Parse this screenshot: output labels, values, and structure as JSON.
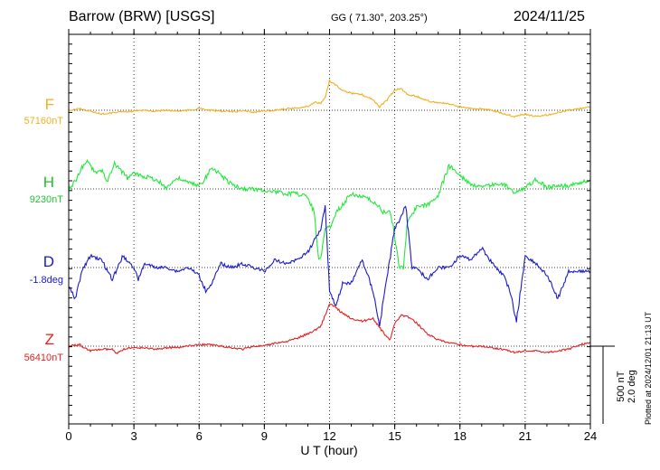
{
  "header": {
    "station": "Barrow (BRW)  [USGS]",
    "coords": "GG ( 71.30°, 203.25°)",
    "date": "2024/11/25"
  },
  "channels": [
    {
      "name": "F",
      "baseline": "57160nT",
      "color": "#f0b020"
    },
    {
      "name": "H",
      "baseline": "9230nT",
      "color": "#22e83a"
    },
    {
      "name": "D",
      "baseline": "-1.8deg",
      "color": "#1a1acc"
    },
    {
      "name": "Z",
      "baseline": "56410nT",
      "color": "#e62020"
    }
  ],
  "scale": {
    "line1": "500 nT",
    "line2": "2.0 deg"
  },
  "plotted": "Plotted at 2024/12/01 21:13 UT",
  "chart_data": {
    "type": "line",
    "title": "Barrow (BRW)  [USGS]",
    "xlabel": "U T (hour)",
    "ylabel": "",
    "xlim": [
      0,
      24
    ],
    "xticks": [
      0,
      3,
      6,
      9,
      12,
      15,
      18,
      21,
      24
    ],
    "units": {
      "F": "nT",
      "H": "nT",
      "D": "deg",
      "Z": "nT"
    },
    "scale_bar": {
      "nT": 500,
      "deg": 2.0
    },
    "grid": true,
    "series": [
      {
        "name": "F",
        "x": [
          0,
          0.5,
          1,
          1.5,
          2,
          2.5,
          3,
          3.5,
          4,
          4.5,
          5,
          5.5,
          6,
          6.5,
          7,
          7.5,
          8,
          8.5,
          9,
          9.5,
          10,
          10.5,
          11,
          11.3,
          11.6,
          11.8,
          12,
          12.3,
          12.6,
          13,
          13.5,
          14,
          14.3,
          14.6,
          15,
          15.3,
          15.6,
          16,
          16.5,
          17,
          17.5,
          18,
          18.5,
          19,
          19.5,
          20,
          20.5,
          21,
          21.5,
          22,
          22.5,
          23,
          23.5,
          24
        ],
        "y": [
          0,
          10,
          -5,
          -25,
          -15,
          -10,
          -5,
          0,
          -5,
          0,
          -5,
          0,
          10,
          0,
          -5,
          -10,
          -5,
          -10,
          -5,
          0,
          10,
          15,
          25,
          50,
          45,
          80,
          190,
          160,
          130,
          110,
          100,
          70,
          20,
          60,
          130,
          140,
          100,
          90,
          60,
          50,
          40,
          20,
          10,
          10,
          0,
          -20,
          -40,
          -25,
          -40,
          -30,
          -15,
          0,
          10,
          20
        ]
      },
      {
        "name": "H",
        "x": [
          0,
          0.3,
          0.6,
          0.9,
          1.2,
          1.5,
          1.8,
          2.1,
          2.4,
          2.7,
          3,
          3.5,
          4,
          4.5,
          5,
          5.5,
          6,
          6.3,
          6.6,
          7,
          7.5,
          8,
          8.5,
          9,
          9.5,
          10,
          10.5,
          11,
          11.3,
          11.5,
          11.6,
          11.8,
          12,
          12.3,
          12.6,
          13,
          13.5,
          14,
          14.5,
          14.8,
          15,
          15.2,
          15.4,
          15.6,
          16,
          16.5,
          17,
          17.5,
          18,
          18.5,
          19,
          19.5,
          20,
          20.5,
          21,
          21.5,
          22,
          22.5,
          23,
          23.5,
          24
        ],
        "y": [
          0,
          50,
          140,
          180,
          100,
          120,
          50,
          160,
          120,
          70,
          100,
          80,
          60,
          10,
          70,
          40,
          20,
          70,
          140,
          90,
          30,
          0,
          0,
          -10,
          -20,
          -30,
          -30,
          -50,
          -150,
          -450,
          -450,
          -250,
          -250,
          -150,
          -100,
          -30,
          -50,
          -80,
          -150,
          -150,
          -300,
          -500,
          -500,
          -200,
          -120,
          -100,
          -40,
          150,
          90,
          30,
          10,
          30,
          30,
          -20,
          10,
          60,
          10,
          20,
          20,
          40,
          60
        ]
      },
      {
        "name": "D",
        "x": [
          0,
          0.3,
          0.6,
          1,
          1.5,
          2,
          2.5,
          3,
          3.2,
          3.5,
          4,
          4.5,
          5,
          5.5,
          6,
          6.3,
          6.6,
          7,
          7.5,
          8,
          8.5,
          9,
          9.5,
          10,
          10.5,
          11,
          11.3,
          11.6,
          11.8,
          12,
          12.3,
          12.6,
          13,
          13.5,
          14,
          14.3,
          14.6,
          15,
          15.2,
          15.5,
          15.8,
          16,
          16.5,
          17,
          17.5,
          18,
          18.5,
          19,
          19.5,
          20,
          20.3,
          20.6,
          21,
          21.5,
          22,
          22.5,
          23,
          23.5,
          24
        ],
        "y": [
          -0.5,
          -0.8,
          -0.1,
          0.3,
          0.2,
          -0.3,
          0.3,
          0.0,
          -0.3,
          0.1,
          0.0,
          0.0,
          -0.1,
          0.0,
          -0.2,
          -0.6,
          -0.4,
          0.1,
          0.0,
          0.1,
          0.0,
          -0.1,
          0.2,
          0.1,
          0.2,
          0.4,
          0.7,
          1.0,
          1.6,
          -0.6,
          -1.0,
          -0.4,
          -0.4,
          0.2,
          -0.6,
          -1.5,
          -0.4,
          1.0,
          1.2,
          1.6,
          0.0,
          0.0,
          -0.3,
          0.0,
          0.0,
          0.3,
          0.2,
          0.5,
          0.1,
          -0.2,
          -0.6,
          -1.4,
          0.3,
          0.1,
          -0.2,
          -0.8,
          -0.1,
          -0.1,
          -0.1
        ]
      },
      {
        "name": "Z",
        "x": [
          0,
          0.5,
          1,
          1.5,
          2,
          2.2,
          2.5,
          3,
          3.5,
          4,
          4.5,
          5,
          5.5,
          6,
          6.5,
          7,
          7.5,
          8,
          8.5,
          9,
          9.5,
          10,
          10.5,
          11,
          11.3,
          11.6,
          12,
          12.3,
          12.6,
          13,
          13.5,
          14,
          14.5,
          14.8,
          15,
          15.3,
          15.6,
          16,
          16.5,
          17,
          17.5,
          18,
          18.5,
          19,
          19.5,
          20,
          20.5,
          21,
          21.5,
          22,
          22.5,
          23,
          23.5,
          24
        ],
        "y": [
          0,
          10,
          -30,
          -20,
          -20,
          -50,
          -20,
          -10,
          -10,
          -20,
          -10,
          -10,
          0,
          10,
          10,
          0,
          -10,
          -20,
          0,
          0,
          20,
          30,
          50,
          80,
          100,
          130,
          270,
          250,
          210,
          180,
          160,
          180,
          80,
          40,
          150,
          200,
          190,
          150,
          80,
          40,
          20,
          10,
          0,
          0,
          -10,
          -20,
          -40,
          -30,
          -30,
          -40,
          -30,
          -20,
          10,
          20
        ]
      }
    ]
  }
}
